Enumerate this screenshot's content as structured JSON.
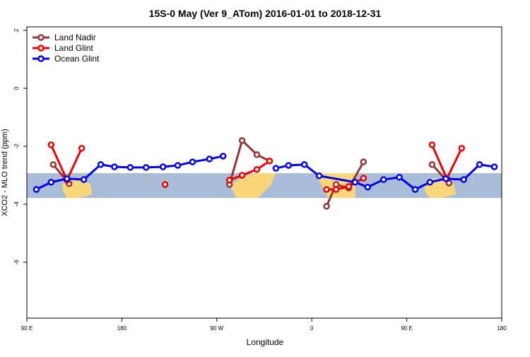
{
  "chart_data": {
    "type": "line",
    "title": "15S-0 May (Ver 9_ATom)   2016-01-01 to 2018-12-31",
    "x_label": "Longitude",
    "y_label": "XCO2 - MLO trend (ppm)",
    "xlim": [
      90,
      540
    ],
    "xticks": [
      {
        "value": 90,
        "label": "90 E"
      },
      {
        "value": 180,
        "label": "180"
      },
      {
        "value": 270,
        "label": "90 W"
      },
      {
        "value": 360,
        "label": "0"
      },
      {
        "value": 450,
        "label": "90 E"
      },
      {
        "value": 540,
        "label": "180"
      }
    ],
    "ylim": [
      -7.93,
      2.12
    ],
    "yticks": [
      2,
      0,
      -2,
      -4,
      -6
    ],
    "legend": "top-left",
    "series": [
      {
        "name": "Land Nadir",
        "color": "#993333",
        "x": [
          115,
          130,
          null,
          282,
          294,
          308,
          320,
          null,
          374,
          383,
          395,
          409,
          null,
          474,
          490
        ],
        "values": [
          -2.63,
          -3.29,
          null,
          -3.32,
          -1.8,
          -2.29,
          -2.51,
          null,
          -4.07,
          -3.32,
          -3.44,
          -2.54,
          null,
          -2.63,
          -3.27
        ]
      },
      {
        "name": "Land Glint",
        "color": "#ee0000",
        "x": [
          113,
          128,
          142,
          null,
          221,
          null,
          282,
          294,
          308,
          320,
          null,
          374,
          383,
          395,
          409,
          null,
          474,
          488,
          502
        ],
        "values": [
          -1.95,
          -3.17,
          -2.07,
          null,
          -3.32,
          null,
          -3.17,
          -3.0,
          -2.8,
          -2.51,
          null,
          -3.49,
          -3.49,
          -3.39,
          -3.1,
          null,
          -1.95,
          -3.12,
          -2.07
        ]
      },
      {
        "name": "Ocean Glint",
        "color": "#0000ee",
        "x": [
          99,
          113,
          128,
          144,
          160,
          173,
          188,
          203,
          219,
          233,
          247,
          263,
          276,
          null,
          326,
          338,
          353,
          367,
          401,
          413,
          428,
          443,
          458,
          472,
          487,
          504,
          519,
          533
        ],
        "values": [
          -3.49,
          -3.24,
          -3.12,
          -3.15,
          -2.63,
          -2.71,
          -2.73,
          -2.73,
          -2.71,
          -2.66,
          -2.54,
          -2.44,
          -2.34,
          null,
          -2.76,
          -2.66,
          -2.63,
          -3.02,
          -3.24,
          -3.41,
          -3.15,
          -3.07,
          -3.49,
          -3.24,
          -3.12,
          -3.15,
          -2.63,
          -2.71
        ]
      }
    ]
  }
}
